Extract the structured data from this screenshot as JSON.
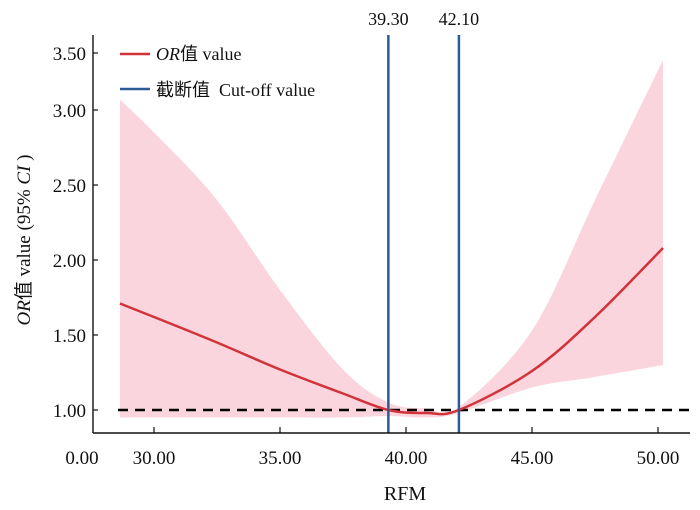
{
  "chart_data": {
    "type": "line",
    "title": "",
    "xlabel": "RFM",
    "ylabel": {
      "italic_prefix": "OR",
      "main": "值 value (95% ",
      "italic_ci": "CI",
      "suffix": " )"
    },
    "xlim": [
      28.0,
      51.3
    ],
    "ylim": [
      0.9,
      3.6
    ],
    "x_ticks": [
      30,
      35,
      40,
      45,
      50
    ],
    "x_tick_labels": [
      "30.00",
      "35.00",
      "40.00",
      "45.00",
      "50.00"
    ],
    "x_axis_break_label": "0.00",
    "y_ticks": [
      1.0,
      1.5,
      2.0,
      2.5,
      3.0,
      3.5
    ],
    "y_tick_labels": [
      "1.00",
      "1.50",
      "2.00",
      "2.50",
      "3.00",
      "3.50"
    ],
    "grid": false,
    "legend_placement": "top-left",
    "legend": [
      {
        "italic": "OR",
        "label": "值 value",
        "color": "#d0343a"
      },
      {
        "italic": "",
        "label": "截断值  Cut-off value",
        "color": "#2b5c98"
      }
    ],
    "reference_line": {
      "y": 1.0,
      "style": "dashed",
      "color": "#000000"
    },
    "cutoffs": [
      {
        "x": 39.3,
        "label": "39.30"
      },
      {
        "x": 42.1,
        "label": "42.10"
      }
    ],
    "ci_color": "#fbd5de",
    "series": [
      {
        "name": "OR值 value",
        "color": "#d0343a",
        "x": [
          28.65,
          30.0,
          32.5,
          35.0,
          37.5,
          39.3,
          40.8,
          42.1,
          45.0,
          47.5,
          50.2
        ],
        "y": [
          1.71,
          1.62,
          1.45,
          1.27,
          1.11,
          1.0,
          0.98,
          1.0,
          1.26,
          1.62,
          2.08
        ],
        "lower": [
          0.95,
          0.95,
          0.95,
          0.95,
          0.95,
          0.96,
          0.95,
          0.98,
          1.15,
          1.22,
          1.3
        ],
        "upper": [
          3.09,
          2.85,
          2.4,
          1.8,
          1.27,
          1.05,
          1.01,
          1.02,
          1.53,
          2.4,
          3.44
        ]
      }
    ]
  }
}
